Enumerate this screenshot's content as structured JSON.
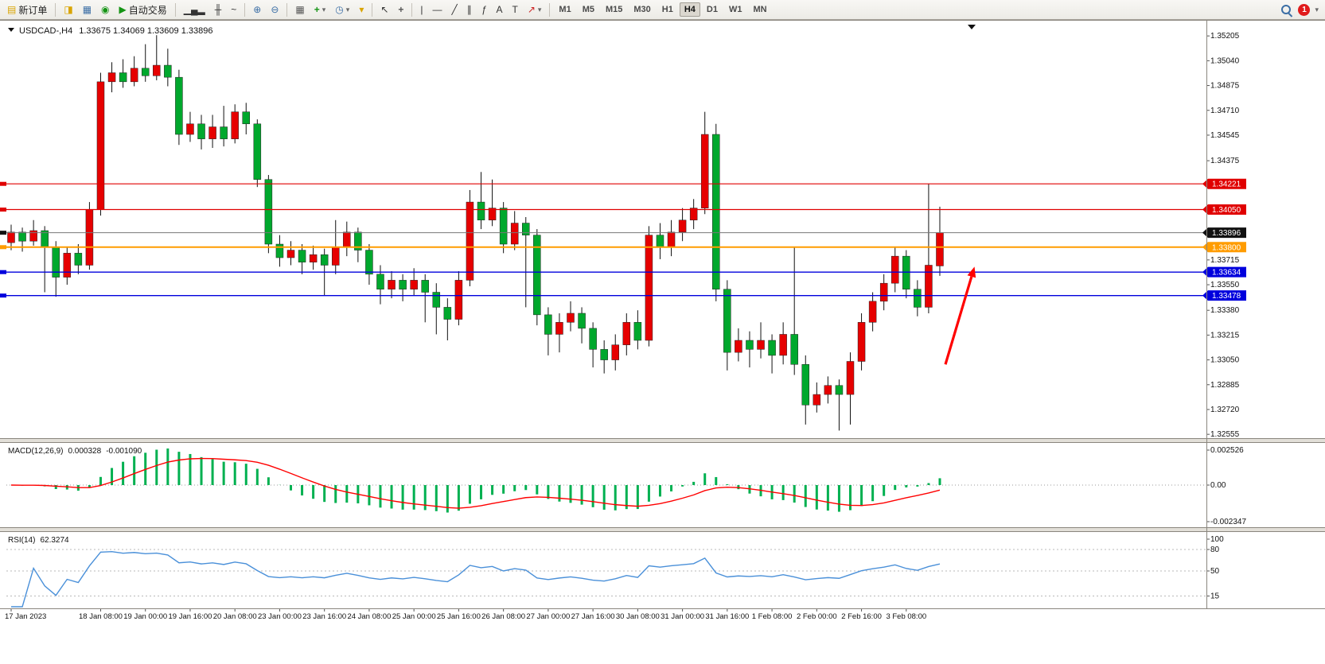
{
  "toolbar": {
    "new_order_label": "新订单",
    "autotrading_label": "自动交易",
    "timeframes": [
      "M1",
      "M5",
      "M15",
      "M30",
      "H1",
      "H4",
      "D1",
      "W1",
      "MN"
    ],
    "active_timeframe": "H4",
    "alert_count": "1",
    "icons": {
      "new_order": "▤",
      "charts": "◨",
      "market_watch": "▦",
      "community": "◉",
      "autotrade_play": "▶",
      "bar_chart": "▁▄▂",
      "candle_chart": "╫",
      "line_chart": "~",
      "zoom_in": "⊕",
      "zoom_out": "⊖",
      "tile_windows": "▦",
      "indicators_add": "+",
      "period_clock": "◷",
      "templates": "▾",
      "cursor": "↖",
      "crosshair": "+",
      "vertical_line": "|",
      "horizontal_line": "—",
      "trendline": "╱",
      "channel": "∥",
      "fibonacci": "ƒ",
      "text": "A",
      "text_label": "T",
      "arrows_tool": "↗",
      "dropdown": "▾"
    }
  },
  "chart": {
    "title": {
      "symbol_period": "USDCAD-,H4",
      "ohlc": "1.33675 1.34069 1.33609 1.33896"
    }
  },
  "chart_data": {
    "type": "candlestick",
    "symbol": "USDCAD",
    "period": "H4",
    "ohlc_display": {
      "open": "1.33675",
      "high": "1.34069",
      "low": "1.33609",
      "close": "1.33896"
    },
    "ylim": [
      1.3254,
      1.3528
    ],
    "y_axis": [
      "1.35205",
      "1.35040",
      "1.34875",
      "1.34710",
      "1.34545",
      "1.34375",
      "1.33715",
      "1.33550",
      "1.33380",
      "1.33215",
      "1.33050",
      "1.32885",
      "1.32720",
      "1.32555"
    ],
    "x_labels": [
      [
        0,
        "17 Jan 2023"
      ],
      [
        8,
        "18 Jan 08:00"
      ],
      [
        12,
        "19 Jan 00:00"
      ],
      [
        16,
        "19 Jan 16:00"
      ],
      [
        20,
        "20 Jan 08:00"
      ],
      [
        24,
        "23 Jan 00:00"
      ],
      [
        28,
        "23 Jan 16:00"
      ],
      [
        32,
        "24 Jan 08:00"
      ],
      [
        36,
        "25 Jan 00:00"
      ],
      [
        40,
        "25 Jan 16:00"
      ],
      [
        44,
        "26 Jan 08:00"
      ],
      [
        48,
        "27 Jan 00:00"
      ],
      [
        52,
        "27 Jan 16:00"
      ],
      [
        56,
        "30 Jan 08:00"
      ],
      [
        60,
        "31 Jan 00:00"
      ],
      [
        64,
        "31 Jan 16:00"
      ],
      [
        68,
        "1 Feb 08:00"
      ],
      [
        72,
        "2 Feb 00:00"
      ],
      [
        76,
        "2 Feb 16:00"
      ],
      [
        80,
        "3 Feb 08:00"
      ]
    ],
    "candles": [
      [
        1.3383,
        1.3395,
        1.3378,
        1.339
      ],
      [
        1.339,
        1.3393,
        1.3377,
        1.3384
      ],
      [
        1.3384,
        1.3398,
        1.3381,
        1.3391
      ],
      [
        1.3391,
        1.3394,
        1.335,
        1.338
      ],
      [
        1.338,
        1.3384,
        1.3347,
        1.336
      ],
      [
        1.336,
        1.338,
        1.3355,
        1.3376
      ],
      [
        1.3376,
        1.3382,
        1.3362,
        1.3368
      ],
      [
        1.3368,
        1.341,
        1.3365,
        1.3405
      ],
      [
        1.3405,
        1.3496,
        1.3401,
        1.349
      ],
      [
        1.349,
        1.3503,
        1.3483,
        1.3496
      ],
      [
        1.3496,
        1.3505,
        1.3486,
        1.349
      ],
      [
        1.349,
        1.3507,
        1.3487,
        1.3499
      ],
      [
        1.3499,
        1.3515,
        1.349,
        1.3494
      ],
      [
        1.3494,
        1.3521,
        1.3491,
        1.3501
      ],
      [
        1.3501,
        1.3512,
        1.3487,
        1.3493
      ],
      [
        1.3493,
        1.3498,
        1.3448,
        1.3455
      ],
      [
        1.3455,
        1.347,
        1.345,
        1.3462
      ],
      [
        1.3462,
        1.3468,
        1.3445,
        1.3452
      ],
      [
        1.3452,
        1.3468,
        1.3446,
        1.346
      ],
      [
        1.346,
        1.3474,
        1.3447,
        1.3452
      ],
      [
        1.3452,
        1.3475,
        1.3449,
        1.347
      ],
      [
        1.347,
        1.3476,
        1.3455,
        1.3462
      ],
      [
        1.3462,
        1.3465,
        1.342,
        1.3425
      ],
      [
        1.3425,
        1.3428,
        1.3376,
        1.3382
      ],
      [
        1.3382,
        1.3388,
        1.3367,
        1.3373
      ],
      [
        1.3373,
        1.3384,
        1.3368,
        1.3378
      ],
      [
        1.3378,
        1.3382,
        1.3362,
        1.337
      ],
      [
        1.337,
        1.3381,
        1.3365,
        1.3375
      ],
      [
        1.3375,
        1.3379,
        1.3348,
        1.3368
      ],
      [
        1.3368,
        1.3398,
        1.3362,
        1.338
      ],
      [
        1.338,
        1.3397,
        1.3374,
        1.339
      ],
      [
        1.339,
        1.3393,
        1.337,
        1.3378
      ],
      [
        1.3378,
        1.3382,
        1.3355,
        1.3362
      ],
      [
        1.3362,
        1.3368,
        1.3342,
        1.3352
      ],
      [
        1.3352,
        1.3364,
        1.3346,
        1.3358
      ],
      [
        1.3358,
        1.3362,
        1.3344,
        1.3352
      ],
      [
        1.3352,
        1.3366,
        1.3348,
        1.3358
      ],
      [
        1.3358,
        1.3362,
        1.333,
        1.335
      ],
      [
        1.335,
        1.3356,
        1.3322,
        1.334
      ],
      [
        1.334,
        1.3346,
        1.3318,
        1.3332
      ],
      [
        1.3332,
        1.3364,
        1.3328,
        1.3358
      ],
      [
        1.3358,
        1.3418,
        1.3354,
        1.341
      ],
      [
        1.341,
        1.343,
        1.3392,
        1.3398
      ],
      [
        1.3398,
        1.3425,
        1.3394,
        1.3406
      ],
      [
        1.3406,
        1.341,
        1.3376,
        1.3382
      ],
      [
        1.3382,
        1.3404,
        1.3378,
        1.3396
      ],
      [
        1.3396,
        1.34,
        1.334,
        1.3388
      ],
      [
        1.3388,
        1.3392,
        1.3328,
        1.3335
      ],
      [
        1.3335,
        1.334,
        1.3308,
        1.3322
      ],
      [
        1.3322,
        1.3336,
        1.331,
        1.333
      ],
      [
        1.333,
        1.3344,
        1.3324,
        1.3336
      ],
      [
        1.3336,
        1.334,
        1.3316,
        1.3326
      ],
      [
        1.3326,
        1.333,
        1.33,
        1.3312
      ],
      [
        1.3312,
        1.3318,
        1.3296,
        1.3305
      ],
      [
        1.3305,
        1.3322,
        1.3298,
        1.3315
      ],
      [
        1.3315,
        1.3336,
        1.3308,
        1.333
      ],
      [
        1.333,
        1.3338,
        1.3312,
        1.3318
      ],
      [
        1.3318,
        1.3394,
        1.3314,
        1.3388
      ],
      [
        1.3388,
        1.3396,
        1.3372,
        1.338
      ],
      [
        1.338,
        1.3398,
        1.3374,
        1.339
      ],
      [
        1.339,
        1.3406,
        1.3384,
        1.3398
      ],
      [
        1.3398,
        1.3412,
        1.3392,
        1.3406
      ],
      [
        1.3406,
        1.347,
        1.3402,
        1.3455
      ],
      [
        1.3455,
        1.3462,
        1.3344,
        1.3352
      ],
      [
        1.3352,
        1.3358,
        1.3298,
        1.331
      ],
      [
        1.331,
        1.3326,
        1.3304,
        1.3318
      ],
      [
        1.3318,
        1.3324,
        1.33,
        1.3312
      ],
      [
        1.3312,
        1.333,
        1.3306,
        1.3318
      ],
      [
        1.3318,
        1.3322,
        1.3296,
        1.3308
      ],
      [
        1.3308,
        1.333,
        1.3302,
        1.3322
      ],
      [
        1.3322,
        1.338,
        1.3295,
        1.3302
      ],
      [
        1.3302,
        1.3308,
        1.3262,
        1.3275
      ],
      [
        1.3275,
        1.329,
        1.327,
        1.3282
      ],
      [
        1.3282,
        1.3294,
        1.3276,
        1.3288
      ],
      [
        1.3288,
        1.3292,
        1.3258,
        1.3282
      ],
      [
        1.3282,
        1.331,
        1.3262,
        1.3304
      ],
      [
        1.3304,
        1.3336,
        1.3298,
        1.333
      ],
      [
        1.333,
        1.335,
        1.3324,
        1.3344
      ],
      [
        1.3344,
        1.3362,
        1.3338,
        1.3356
      ],
      [
        1.3356,
        1.338,
        1.335,
        1.3374
      ],
      [
        1.3374,
        1.3378,
        1.3346,
        1.3352
      ],
      [
        1.3352,
        1.3358,
        1.3334,
        1.334
      ],
      [
        1.334,
        1.3422,
        1.3336,
        1.3368
      ],
      [
        1.33675,
        1.34069,
        1.33609,
        1.33896
      ]
    ],
    "hlines": [
      {
        "price": 1.34221,
        "label": "1.34221",
        "color": "#e00000",
        "w": 1.2
      },
      {
        "price": 1.3405,
        "label": "1.34050",
        "color": "#e00000",
        "w": 1.2
      },
      {
        "price": 1.33896,
        "label": "1.33896",
        "color": "#777777",
        "badge": "#111111",
        "w": 1,
        "role": "current-price"
      },
      {
        "price": 1.338,
        "label": "1.33800",
        "color": "#ff9c00",
        "w": 2
      },
      {
        "price": 1.33634,
        "label": "1.33634",
        "color": "#0000dd",
        "w": 1.3
      },
      {
        "price": 1.33478,
        "label": "1.33478",
        "color": "#0000dd",
        "w": 1.3
      }
    ],
    "colors": {
      "bull": "#e60000",
      "bear": "#00a82d",
      "wick": "#111111",
      "macd_hist": "#00b050",
      "macd_signal": "#ff0000",
      "rsi_line": "#4a90d9"
    },
    "indicators": {
      "macd": {
        "label": "MACD(12,26,9)",
        "value_main": "0.000328",
        "value_signal": "-0.001090",
        "params": [
          12,
          26,
          9
        ],
        "axis_labels": [
          "0.002526",
          "0.00",
          "-0.002347"
        ]
      },
      "rsi": {
        "label": "RSI(14)",
        "value": "62.3274",
        "period": 14,
        "levels": [
          80,
          50,
          15
        ],
        "axis_labels": [
          "100",
          "80",
          "50",
          "15"
        ]
      }
    },
    "annotations": [
      {
        "type": "arrow",
        "color": "#ff0000",
        "x1_index": 83.5,
        "y1_price": 1.3302,
        "x2_index": 86.1,
        "y2_price": 1.3367,
        "note": "red up-right arrow near latest candles"
      }
    ]
  }
}
